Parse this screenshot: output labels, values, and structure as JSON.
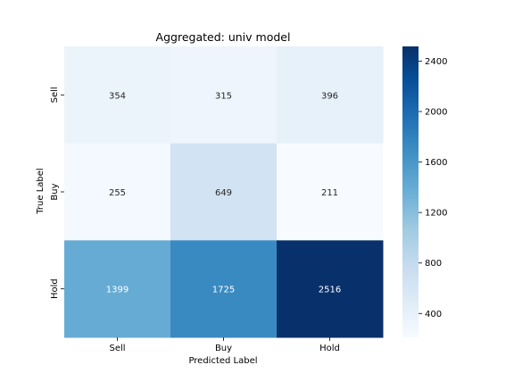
{
  "chart_data": {
    "type": "heatmap",
    "title": "Aggregated: univ model",
    "xlabel": "Predicted Label",
    "ylabel": "True Label",
    "x_categories": [
      "Sell",
      "Buy",
      "Hold"
    ],
    "y_categories": [
      "Sell",
      "Buy",
      "Hold"
    ],
    "values": [
      [
        354,
        315,
        396
      ],
      [
        255,
        649,
        211
      ],
      [
        1399,
        1725,
        2516
      ]
    ],
    "colormap": "Blues",
    "color_range": [
      211,
      2516
    ],
    "colorbar_ticks": [
      "400",
      "800",
      "1200",
      "1600",
      "2000",
      "2400"
    ],
    "colorbar_tick_values": [
      400,
      800,
      1200,
      1600,
      2000,
      2400
    ]
  }
}
